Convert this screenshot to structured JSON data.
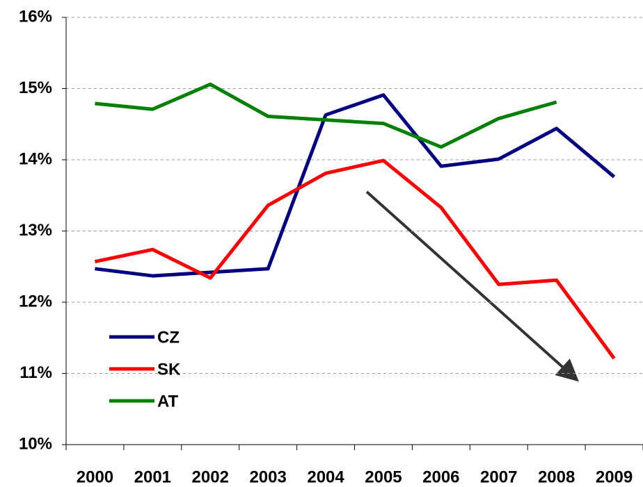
{
  "chart_data": {
    "type": "line",
    "categories": [
      "2000",
      "2001",
      "2002",
      "2003",
      "2004",
      "2005",
      "2006",
      "2007",
      "2008",
      "2009"
    ],
    "series": [
      {
        "name": "CZ",
        "color": "#000080",
        "values": [
          12.47,
          12.37,
          12.42,
          12.47,
          14.63,
          14.91,
          13.91,
          14.01,
          14.44,
          13.76
        ]
      },
      {
        "name": "SK",
        "color": "#ff0000",
        "values": [
          12.57,
          12.74,
          12.34,
          13.36,
          13.81,
          13.99,
          13.33,
          12.25,
          12.31,
          11.21
        ]
      },
      {
        "name": "AT",
        "color": "#008000",
        "values": [
          14.79,
          14.71,
          15.06,
          14.61,
          14.56,
          14.51,
          14.18,
          14.58,
          14.81,
          null
        ]
      }
    ],
    "ylim": [
      10,
      16
    ],
    "yticks": [
      {
        "value": 10,
        "label": "10%"
      },
      {
        "value": 11,
        "label": "11%"
      },
      {
        "value": 12,
        "label": "12%"
      },
      {
        "value": 13,
        "label": "13%"
      },
      {
        "value": 14,
        "label": "14%"
      },
      {
        "value": 15,
        "label": "15%"
      },
      {
        "value": 16,
        "label": "16%"
      }
    ],
    "grid": true
  }
}
